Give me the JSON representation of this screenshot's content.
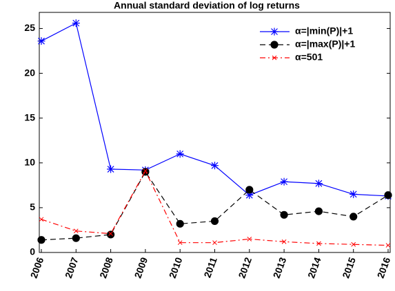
{
  "chart_data": {
    "type": "line",
    "title": "Annual standard deviation of log returns",
    "categories": [
      "2006",
      "2007",
      "2008",
      "2009",
      "2010",
      "2011",
      "2012",
      "2013",
      "2014",
      "2015",
      "2016"
    ],
    "series": [
      {
        "name": "α=|min(P)|+1",
        "color": "#0000ff",
        "values": [
          23.6,
          25.6,
          9.3,
          9.2,
          11.0,
          9.7,
          6.4,
          7.9,
          7.7,
          6.5,
          6.3
        ]
      },
      {
        "name": "α=|max(P)|+1",
        "color": "#000000",
        "values": [
          1.4,
          1.6,
          2.0,
          9.0,
          3.2,
          3.5,
          7.0,
          4.2,
          4.6,
          4.0,
          6.4
        ]
      },
      {
        "name": "α=501",
        "color": "#ff0000",
        "values": [
          3.7,
          2.4,
          2.1,
          9.1,
          1.1,
          1.1,
          1.5,
          1.2,
          1.0,
          0.9,
          0.8
        ]
      }
    ],
    "ylim": [
      0,
      26.8
    ],
    "yticks": [
      0,
      5,
      10,
      15,
      20,
      25
    ],
    "legend": "upper right"
  }
}
